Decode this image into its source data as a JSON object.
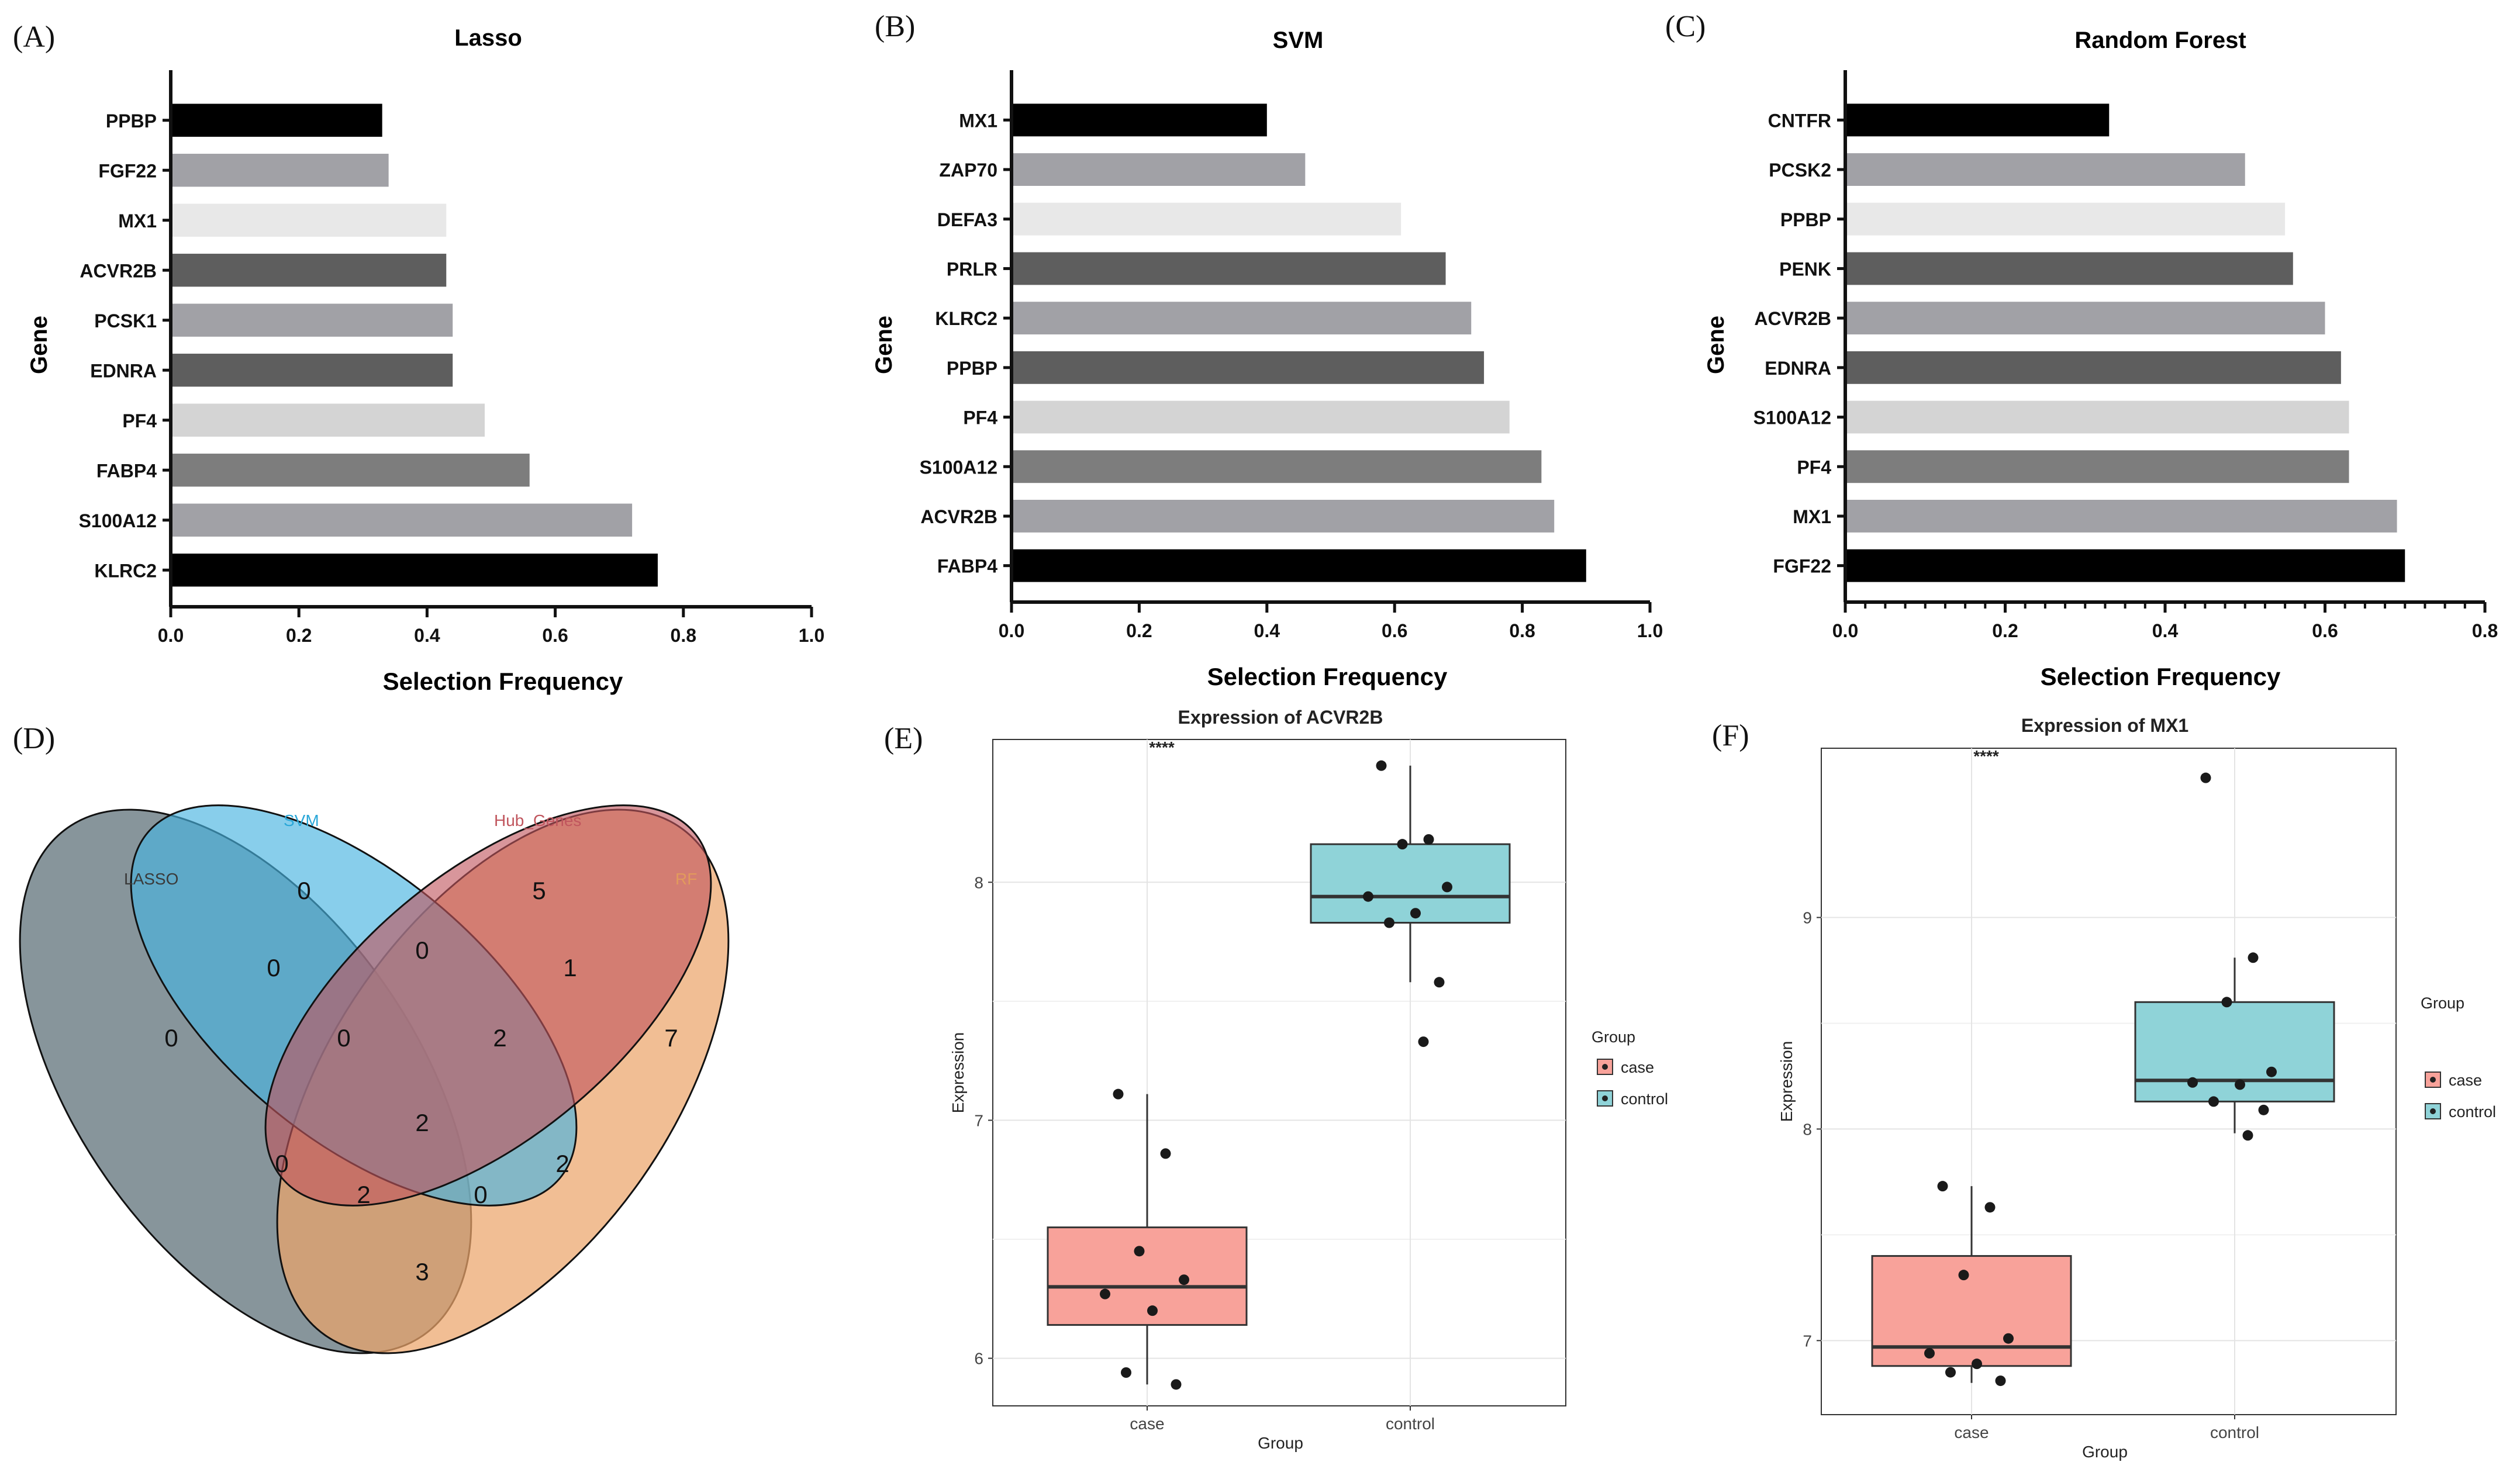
{
  "colors": {
    "bar_cycle": [
      "#000000",
      "#a1a1a6",
      "#e8e8e8",
      "#5e5e5e",
      "#a1a1a6",
      "#5e5e5e",
      "#d4d4d4",
      "#7d7d7d",
      "#a1a1a6",
      "#000000"
    ],
    "case": "#f8a29a",
    "control": "#8fd3d8",
    "venn_lasso": "#5f7279",
    "venn_svm": "#48b4e1",
    "venn_hub": "#c0555d",
    "venn_rf": "#eca56b"
  },
  "chart_data": [
    {
      "id": "A",
      "type": "bar",
      "orientation": "horizontal",
      "panel_label": "(A)",
      "title": "Lasso",
      "xlabel": "Selection Frequency",
      "ylabel": "Gene",
      "categories": [
        "PPBP",
        "FGF22",
        "MX1",
        "ACVR2B",
        "PCSK1",
        "EDNRA",
        "PF4",
        "FABP4",
        "S100A12",
        "KLRC2"
      ],
      "values": [
        0.33,
        0.34,
        0.43,
        0.43,
        0.44,
        0.44,
        0.49,
        0.56,
        0.72,
        0.76
      ],
      "xlim": [
        0,
        1.0
      ],
      "xticks": [
        "0.0",
        "0.2",
        "0.4",
        "0.6",
        "0.8",
        "1.0"
      ]
    },
    {
      "id": "B",
      "type": "bar",
      "orientation": "horizontal",
      "panel_label": "(B)",
      "title": "SVM",
      "xlabel": "Selection Frequency",
      "ylabel": "Gene",
      "categories": [
        "MX1",
        "ZAP70",
        "DEFA3",
        "PRLR",
        "KLRC2",
        "PPBP",
        "PF4",
        "S100A12",
        "ACVR2B",
        "FABP4"
      ],
      "values": [
        0.4,
        0.46,
        0.61,
        0.68,
        0.72,
        0.74,
        0.78,
        0.83,
        0.85,
        0.9
      ],
      "xlim": [
        0,
        1.0
      ],
      "xticks": [
        "0.0",
        "0.2",
        "0.4",
        "0.6",
        "0.8",
        "1.0"
      ]
    },
    {
      "id": "C",
      "type": "bar",
      "orientation": "horizontal",
      "panel_label": "(C)",
      "title": "Random Forest",
      "xlabel": "Selection Frequency",
      "ylabel": "Gene",
      "categories": [
        "CNTFR",
        "PCSK2",
        "PPBP",
        "PENK",
        "ACVR2B",
        "EDNRA",
        "S100A12",
        "PF4",
        "MX1",
        "FGF22"
      ],
      "values": [
        0.33,
        0.5,
        0.55,
        0.56,
        0.6,
        0.62,
        0.63,
        0.63,
        0.69,
        0.7
      ],
      "xlim": [
        0,
        0.8
      ],
      "xticks": [
        "0.0",
        "0.2",
        "0.4",
        "0.6",
        "0.8"
      ]
    },
    {
      "id": "D",
      "type": "venn",
      "panel_label": "(D)",
      "sets": [
        "LASSO",
        "SVM",
        "Hub_Genes",
        "RF"
      ],
      "regions": {
        "lasso_only": 0,
        "svm_only": 0,
        "hub_only": 5,
        "rf_only": 7,
        "lasso_svm": 0,
        "svm_hub": 0,
        "hub_rf": 1,
        "lasso_rf": 3,
        "lasso_hub": 0,
        "svm_rf": 2,
        "lasso_svm_hub": 0,
        "svm_hub_rf": 2,
        "lasso_hub_rf": 2,
        "lasso_svm_rf": 0,
        "all": 2
      }
    },
    {
      "id": "E",
      "type": "boxplot",
      "panel_label": "(E)",
      "title": "Expression of ACVR2B",
      "xlabel": "Group",
      "ylabel": "Expression",
      "significance": "****",
      "ylim": [
        5.8,
        8.6
      ],
      "yticks": [
        6,
        7,
        8
      ],
      "legend_title": "Group",
      "groups": [
        {
          "name": "case",
          "q1": 6.14,
          "median": 6.3,
          "q3": 6.55,
          "whisker_low": 5.89,
          "whisker_high": 7.11,
          "points": [
            7.11,
            6.86,
            6.45,
            6.33,
            6.27,
            6.2,
            5.94,
            5.89
          ]
        },
        {
          "name": "control",
          "q1": 7.83,
          "median": 7.94,
          "q3": 8.16,
          "whisker_low": 7.58,
          "whisker_high": 8.49,
          "points": [
            8.49,
            8.18,
            8.16,
            7.98,
            7.94,
            7.87,
            7.83,
            7.58,
            7.33
          ]
        }
      ]
    },
    {
      "id": "F",
      "type": "boxplot",
      "panel_label": "(F)",
      "title": "Expression of MX1",
      "xlabel": "Group",
      "ylabel": "Expression",
      "significance": "****",
      "ylim": [
        6.65,
        9.8
      ],
      "yticks": [
        7,
        8,
        9
      ],
      "legend_title": "Group",
      "groups": [
        {
          "name": "case",
          "q1": 6.88,
          "median": 6.97,
          "q3": 7.4,
          "whisker_low": 6.8,
          "whisker_high": 7.73,
          "points": [
            7.73,
            7.63,
            7.31,
            7.01,
            6.94,
            6.89,
            6.85,
            6.81
          ]
        },
        {
          "name": "control",
          "q1": 8.13,
          "median": 8.23,
          "q3": 8.6,
          "whisker_low": 7.98,
          "whisker_high": 8.81,
          "points": [
            9.66,
            8.81,
            8.6,
            8.27,
            8.22,
            8.21,
            8.13,
            8.09,
            7.97
          ]
        }
      ]
    }
  ]
}
